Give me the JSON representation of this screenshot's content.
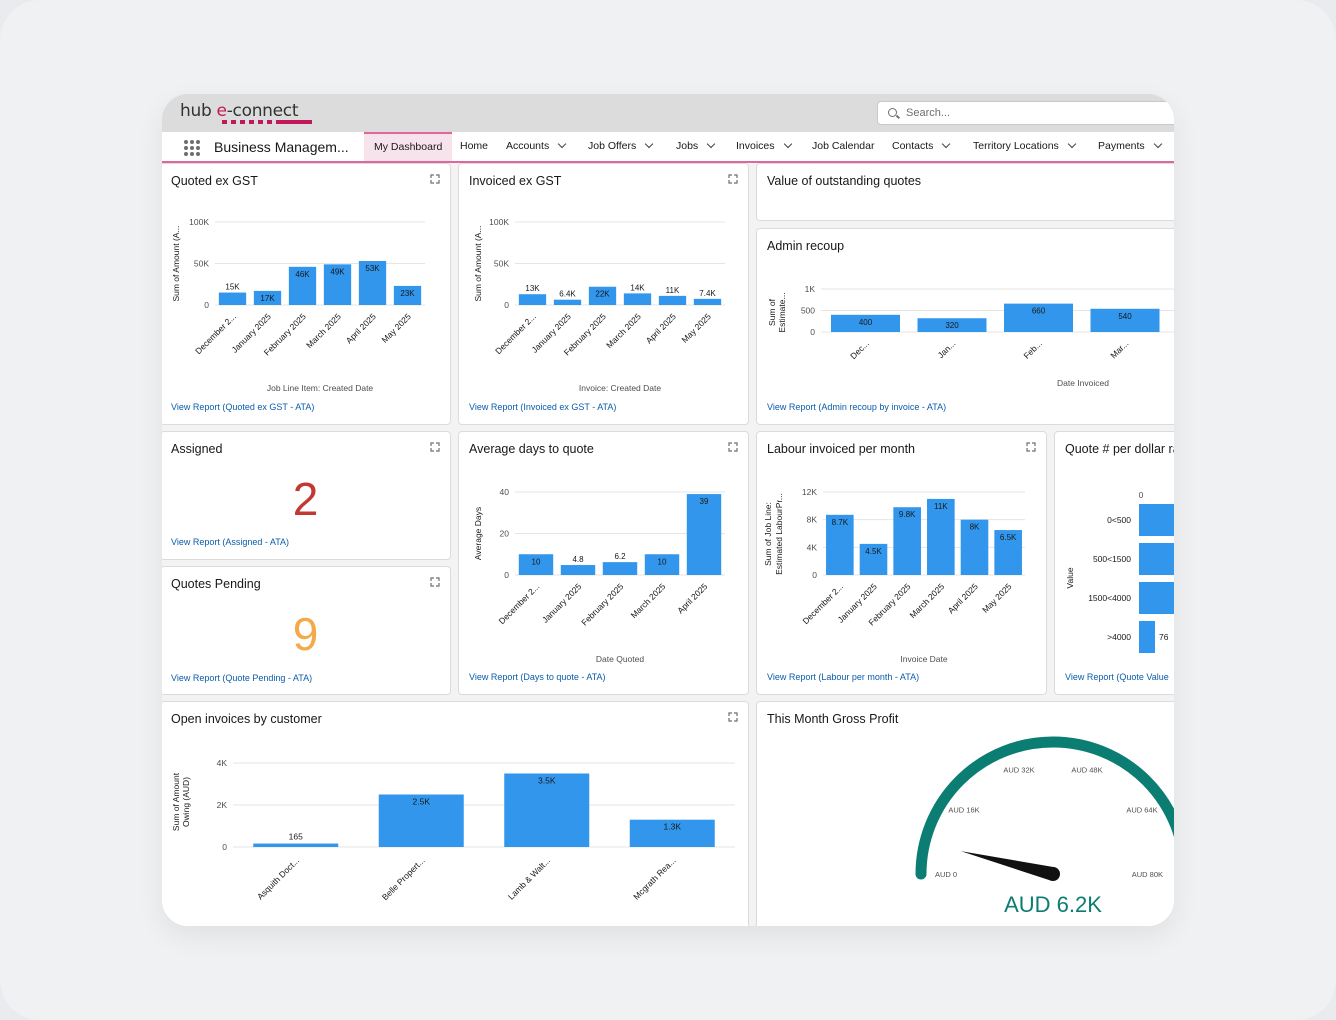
{
  "app": {
    "name": "Business Managem...",
    "search_placeholder": "Search...",
    "logo_hub": "hub ",
    "logo_e": "e",
    "logo_connect": "-connect"
  },
  "nav": {
    "tabs": [
      {
        "label": "My Dashboard",
        "active": true,
        "dropdown": false
      },
      {
        "label": "Home",
        "dropdown": false
      },
      {
        "label": "Accounts",
        "dropdown": true
      },
      {
        "label": "Job Offers",
        "dropdown": true
      },
      {
        "label": "Jobs",
        "dropdown": true
      },
      {
        "label": "Invoices",
        "dropdown": true
      },
      {
        "label": "Job Calendar",
        "dropdown": false
      },
      {
        "label": "Contacts",
        "dropdown": true
      },
      {
        "label": "Territory Locations",
        "dropdown": true
      },
      {
        "label": "Payments",
        "dropdown": true
      }
    ]
  },
  "colors": {
    "bar": "#3296ed",
    "accent": "#e0669b",
    "assigned": "#c23934",
    "pending": "#f4a94a",
    "gauge": "#0b7d72",
    "link": "#0b5cab"
  },
  "cards": {
    "quoted": {
      "title": "Quoted ex GST",
      "link": "View Report (Quoted ex GST - ATA)"
    },
    "invoiced": {
      "title": "Invoiced ex GST",
      "link": "View Report (Invoiced ex GST - ATA)"
    },
    "outstanding": {
      "title": "Value of outstanding quotes"
    },
    "admin": {
      "title": "Admin recoup",
      "link": "View Report (Admin recoup by invoice - ATA)"
    },
    "assigned": {
      "title": "Assigned",
      "value": "2",
      "link": "View Report (Assigned - ATA)"
    },
    "pending": {
      "title": "Quotes Pending",
      "value": "9",
      "link": "View Report (Quote Pending - ATA)"
    },
    "avgdays": {
      "title": "Average days to quote",
      "link": "View Report (Days to quote - ATA)"
    },
    "labour": {
      "title": "Labour invoiced per month",
      "link": "View Report (Labour per month - ATA)"
    },
    "quotenum": {
      "title": "Quote # per dollar ra",
      "link": "View Report (Quote Value"
    },
    "openinv": {
      "title": "Open invoices by customer"
    },
    "gross": {
      "title": "This Month Gross Profit"
    }
  },
  "chart_data": [
    {
      "id": "quoted",
      "type": "bar",
      "ylabel": "Sum of Amount (A...",
      "xlabel": "Job Line Item: Created Date",
      "categories": [
        "December 2...",
        "January 2025",
        "February 2025",
        "March 2025",
        "April 2025",
        "May 2025"
      ],
      "values": [
        15000,
        17000,
        46000,
        49000,
        53000,
        23000
      ],
      "data_labels": [
        "15K",
        "17K",
        "46K",
        "49K",
        "53K",
        "23K"
      ],
      "ylim": [
        0,
        100000
      ],
      "yticks": [
        0,
        50000,
        100000
      ],
      "ytick_labels": [
        "0",
        "50K",
        "100K"
      ],
      "grid": true
    },
    {
      "id": "invoiced",
      "type": "bar",
      "ylabel": "Sum of Amount (A...",
      "xlabel": "Invoice: Created Date",
      "categories": [
        "December 2...",
        "January 2025",
        "February 2025",
        "March 2025",
        "April 2025",
        "May 2025"
      ],
      "values": [
        13000,
        6400,
        22000,
        14000,
        11000,
        7400
      ],
      "data_labels": [
        "13K",
        "6.4K",
        "22K",
        "14K",
        "11K",
        "7.4K"
      ],
      "ylim": [
        0,
        100000
      ],
      "yticks": [
        0,
        50000,
        100000
      ],
      "ytick_labels": [
        "0",
        "50K",
        "100K"
      ],
      "grid": true
    },
    {
      "id": "admin",
      "type": "bar",
      "ylabel": "Sum of Estimate...",
      "xlabel": "Date Invoiced",
      "categories": [
        "Dec...",
        "Jan...",
        "Feb...",
        "Mar..."
      ],
      "values": [
        400,
        320,
        660,
        540
      ],
      "data_labels": [
        "400",
        "320",
        "660",
        "540"
      ],
      "ylim": [
        0,
        1000
      ],
      "yticks": [
        0,
        500,
        1000
      ],
      "ytick_labels": [
        "0",
        "500",
        "1K"
      ],
      "grid": true
    },
    {
      "id": "avgdays",
      "type": "bar",
      "ylabel": "Average Days",
      "xlabel": "Date Quoted",
      "categories": [
        "December 2...",
        "January 2025",
        "February 2025",
        "March 2025",
        "April 2025"
      ],
      "values": [
        10,
        4.8,
        6.2,
        10,
        39
      ],
      "data_labels": [
        "10",
        "4.8",
        "6.2",
        "10",
        "39"
      ],
      "ylim": [
        0,
        40
      ],
      "yticks": [
        0,
        20,
        40
      ],
      "ytick_labels": [
        "0",
        "20",
        "40"
      ],
      "grid": true
    },
    {
      "id": "labour",
      "type": "bar",
      "ylabel": "Sum of Job Line: Estimated LabourPr...",
      "xlabel": "Invoice Date",
      "categories": [
        "December 2...",
        "January 2025",
        "February 2025",
        "March 2025",
        "April 2025",
        "May 2025"
      ],
      "values": [
        8700,
        4500,
        9800,
        11000,
        8000,
        6500
      ],
      "data_labels": [
        "8.7K",
        "4.5K",
        "9.8K",
        "11K",
        "8K",
        "6.5K"
      ],
      "ylim": [
        0,
        12000
      ],
      "yticks": [
        0,
        4000,
        8000,
        12000
      ],
      "ytick_labels": [
        "0",
        "4K",
        "8K",
        "12K"
      ],
      "grid": true
    },
    {
      "id": "quotenum",
      "type": "bar",
      "orientation": "horizontal",
      "ylabel": "Value",
      "categories": [
        "0<500",
        "500<1500",
        "1500<4000",
        ">4000"
      ],
      "values": [
        null,
        null,
        null,
        76
      ],
      "data_labels": [
        "",
        "",
        "",
        "76"
      ],
      "xtick_labels": [
        "0"
      ]
    },
    {
      "id": "openinv",
      "type": "bar",
      "ylabel": "Sum of Amount Owing (AUD)",
      "categories": [
        "Asquith Doct...",
        "Belle Propert...",
        "Lamb & Walt...",
        "Mcgrath Rea..."
      ],
      "values": [
        165,
        2500,
        3500,
        1300
      ],
      "data_labels": [
        "165",
        "2.5K",
        "3.5K",
        "1.3K"
      ],
      "ylim": [
        0,
        4000
      ],
      "yticks": [
        0,
        2000,
        4000
      ],
      "ytick_labels": [
        "0",
        "2K",
        "4K"
      ],
      "grid": true
    },
    {
      "id": "gross",
      "type": "gauge",
      "value": 6200,
      "value_label": "AUD 6.2K",
      "min": 0,
      "max": 80000,
      "tick_values": [
        0,
        16000,
        32000,
        48000,
        64000,
        80000
      ],
      "tick_labels": [
        "AUD 0",
        "AUD 16K",
        "AUD 32K",
        "AUD 48K",
        "AUD 64K",
        "AUD 80K"
      ]
    }
  ]
}
